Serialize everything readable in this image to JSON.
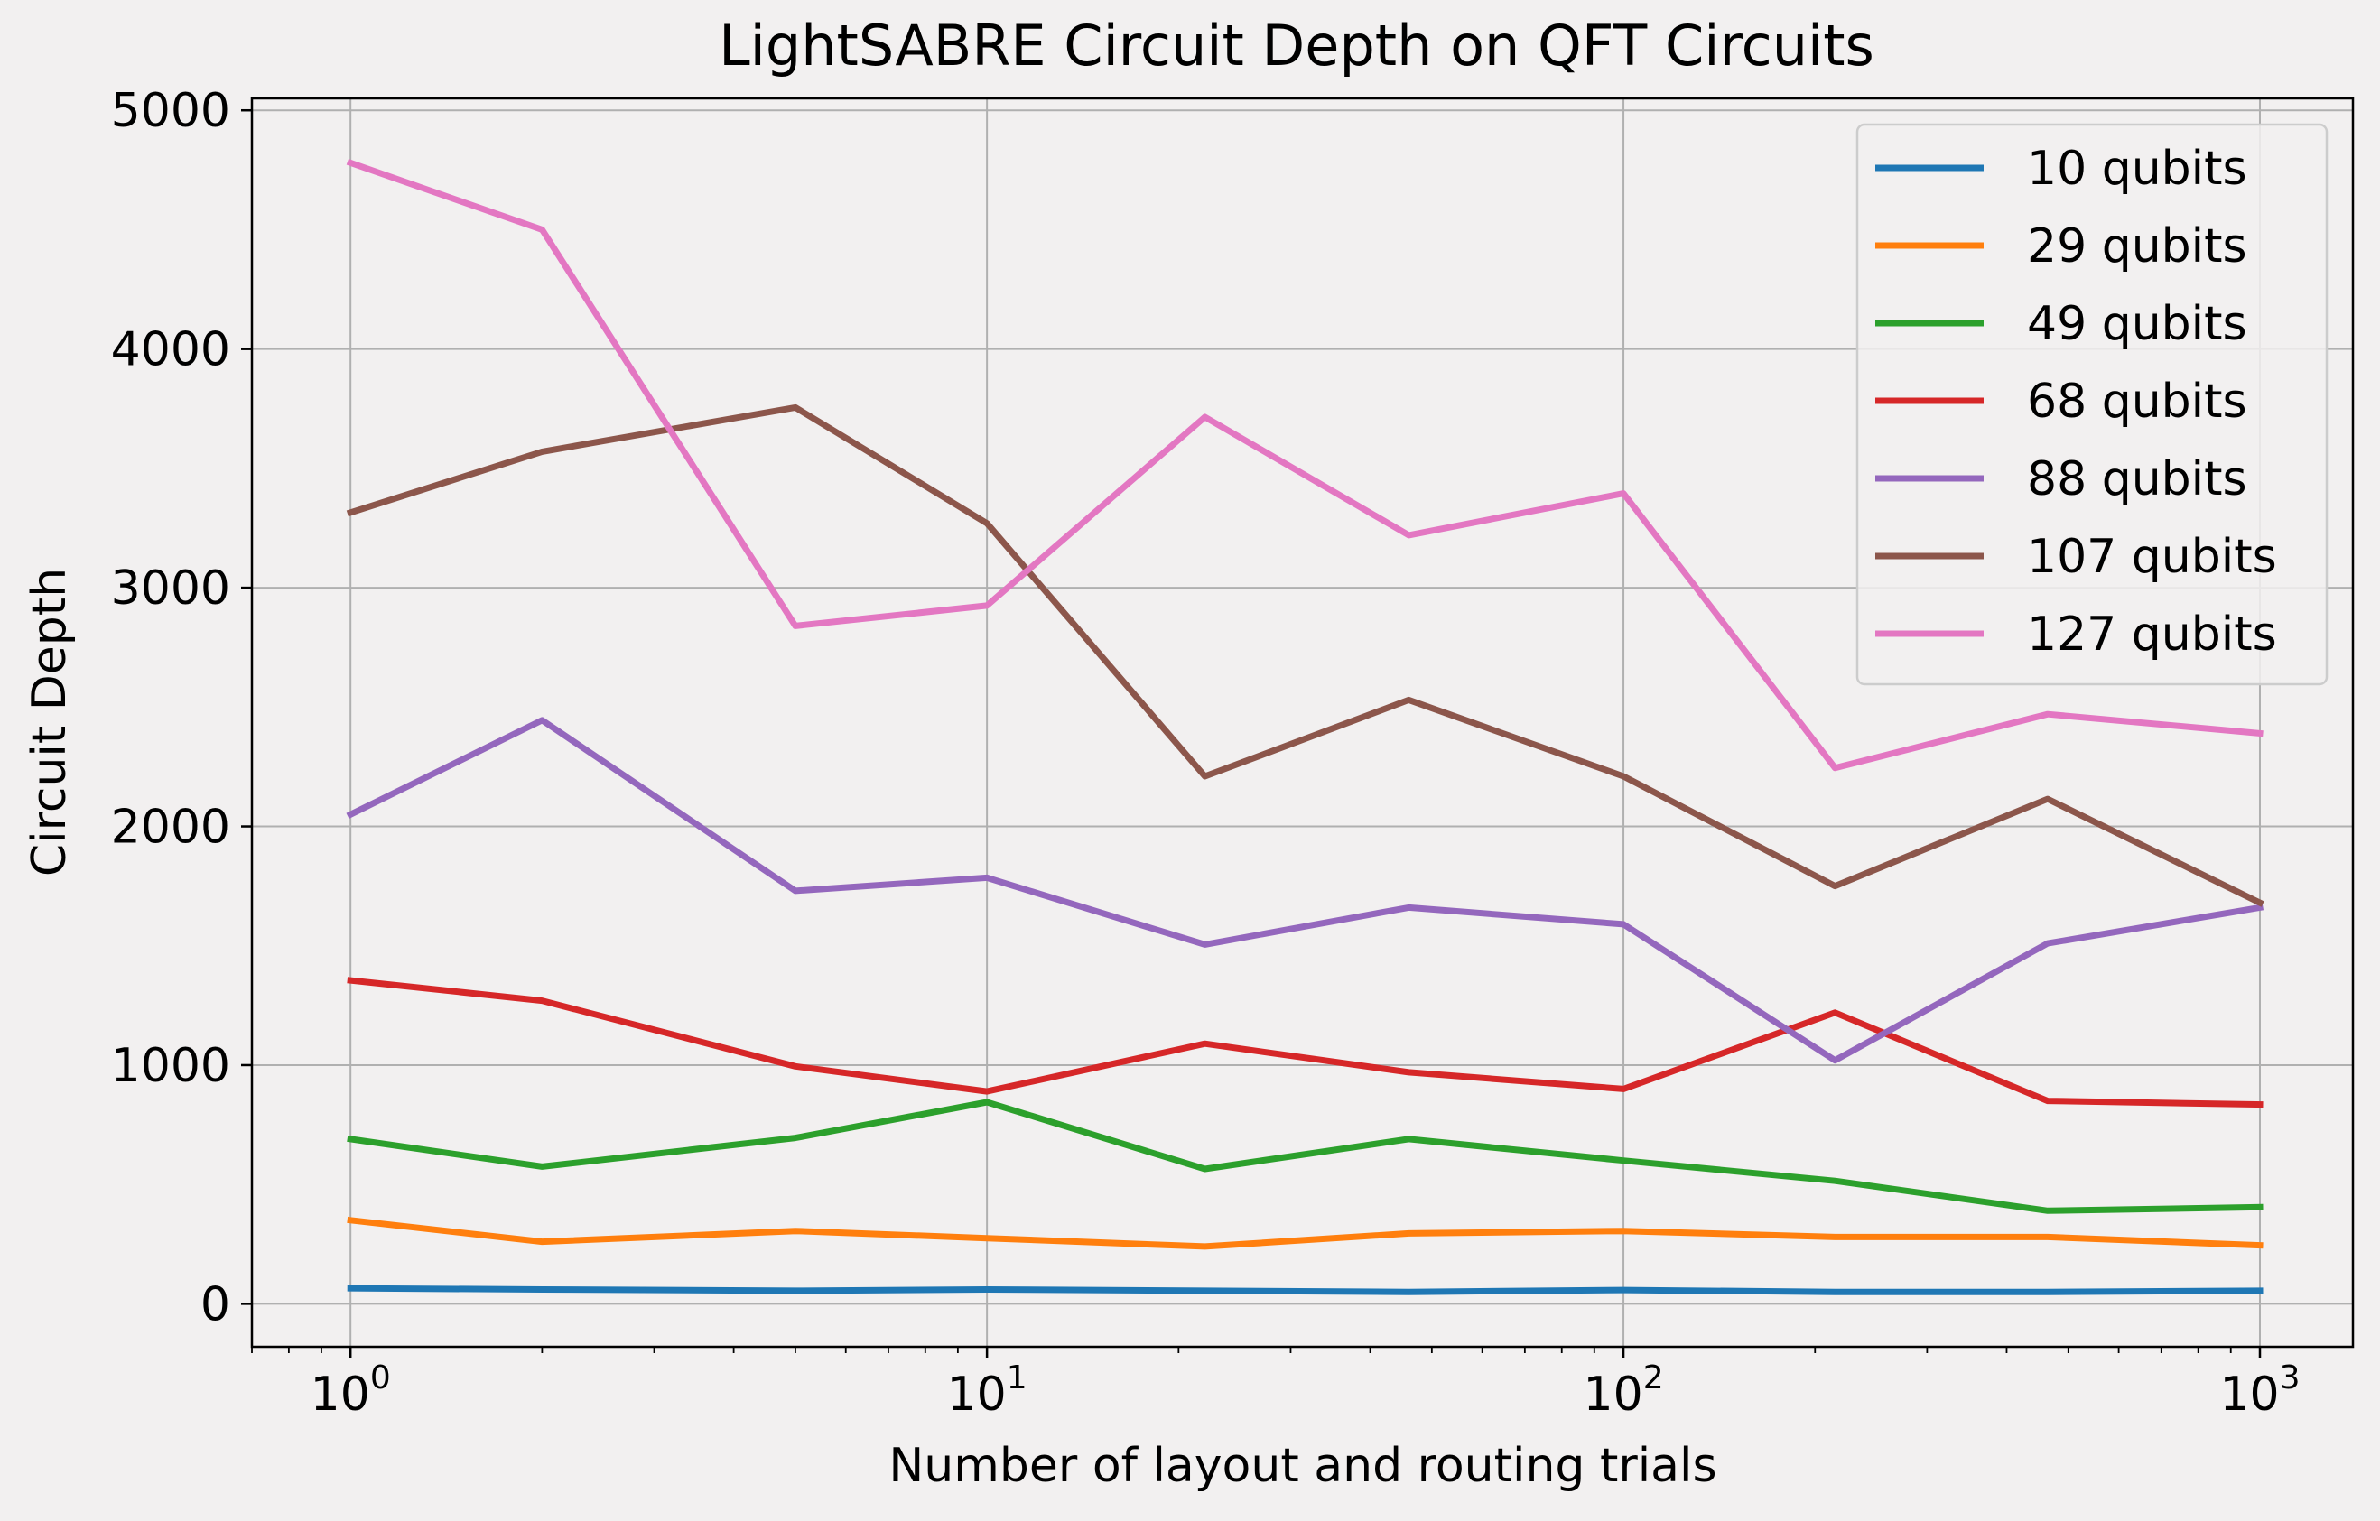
{
  "chart_data": {
    "type": "line",
    "title": "LightSABRE Circuit Depth on QFT Circuits",
    "xlabel": "Number of layout and routing trials",
    "ylabel": "Circuit Depth",
    "xscale": "log",
    "xlim": [
      0.7,
      1400
    ],
    "ylim": [
      -180,
      5050
    ],
    "grid": true,
    "legend_position": "top-right",
    "background_color": "#f2f0f0",
    "x": [
      1,
      2,
      5,
      10,
      22,
      46,
      100,
      215,
      464,
      1000
    ],
    "x_ticks": [
      {
        "value": 1,
        "base": "10",
        "exp": "0"
      },
      {
        "value": 10,
        "base": "10",
        "exp": "1"
      },
      {
        "value": 100,
        "base": "10",
        "exp": "2"
      },
      {
        "value": 1000,
        "base": "10",
        "exp": "3"
      }
    ],
    "y_ticks": [
      {
        "value": 0,
        "label": "0"
      },
      {
        "value": 1000,
        "label": "1000"
      },
      {
        "value": 2000,
        "label": "2000"
      },
      {
        "value": 3000,
        "label": "3000"
      },
      {
        "value": 4000,
        "label": "4000"
      },
      {
        "value": 5000,
        "label": "5000"
      }
    ],
    "series": [
      {
        "name": "10 qubits",
        "color": "#1f77b4",
        "values": [
          65,
          60,
          55,
          60,
          55,
          50,
          58,
          50,
          50,
          55
        ]
      },
      {
        "name": "29 qubits",
        "color": "#ff7f0e",
        "values": [
          350,
          260,
          305,
          275,
          240,
          295,
          305,
          280,
          280,
          245
        ]
      },
      {
        "name": "49 qubits",
        "color": "#2ca02c",
        "values": [
          690,
          575,
          695,
          845,
          565,
          690,
          600,
          515,
          390,
          405
        ]
      },
      {
        "name": "68 qubits",
        "color": "#d62728",
        "values": [
          1355,
          1270,
          995,
          890,
          1090,
          970,
          900,
          1220,
          850,
          835
        ]
      },
      {
        "name": "88 qubits",
        "color": "#9467bd",
        "values": [
          2050,
          2445,
          1730,
          1785,
          1505,
          1660,
          1590,
          1020,
          1510,
          1660
        ]
      },
      {
        "name": "107 qubits",
        "color": "#8c564b",
        "values": [
          3315,
          3570,
          3755,
          3270,
          2210,
          2530,
          2210,
          1750,
          2115,
          1680
        ]
      },
      {
        "name": "127 qubits",
        "color": "#e377c2",
        "values": [
          4780,
          4500,
          2840,
          2925,
          3715,
          3220,
          3395,
          2245,
          2470,
          2390
        ]
      }
    ]
  }
}
